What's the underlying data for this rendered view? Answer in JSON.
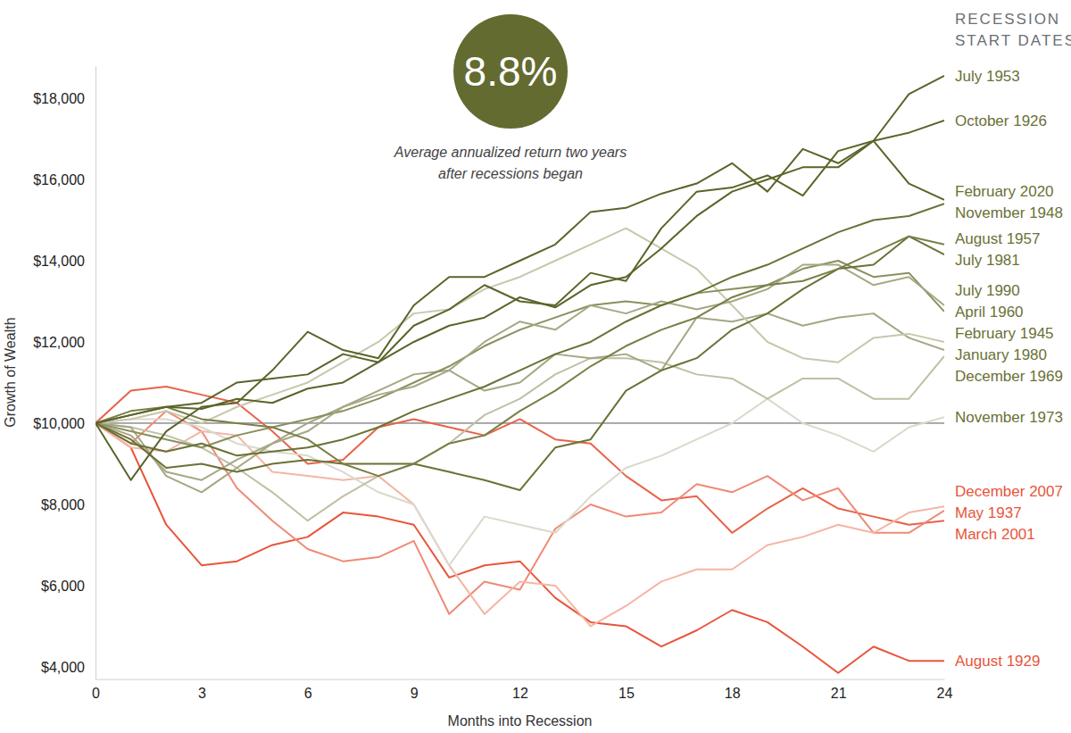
{
  "chart_data": {
    "type": "line",
    "headline": "8.8%",
    "caption": [
      "Average annualized return two years",
      "after recessions began"
    ],
    "legend_title": [
      "RECESSION",
      "START DATES"
    ],
    "x_label": "Months into Recession",
    "y_label": "Growth of Wealth",
    "x": [
      0,
      1,
      2,
      3,
      4,
      5,
      6,
      7,
      8,
      9,
      10,
      11,
      12,
      13,
      14,
      15,
      16,
      17,
      18,
      19,
      20,
      21,
      22,
      23,
      24
    ],
    "xlim": [
      0,
      24
    ],
    "xticks": [
      0,
      3,
      6,
      9,
      12,
      15,
      18,
      21,
      24
    ],
    "ylim": [
      3700,
      18800
    ],
    "yticks": [
      {
        "value": 4000,
        "label": "$4,000"
      },
      {
        "value": 6000,
        "label": "$6,000"
      },
      {
        "value": 8000,
        "label": "$8,000"
      },
      {
        "value": 10000,
        "label": "$10,000"
      },
      {
        "value": 12000,
        "label": "$12,000"
      },
      {
        "value": 14000,
        "label": "$14,000"
      },
      {
        "value": 16000,
        "label": "$16,000"
      },
      {
        "value": 18000,
        "label": "$18,000"
      }
    ],
    "baseline": 10000,
    "grid": false,
    "series": [
      {
        "name": "July 1953",
        "color": "#5b6429",
        "values": [
          10000,
          10200,
          10400,
          10350,
          10600,
          10500,
          10850,
          11000,
          11500,
          12000,
          12400,
          12600,
          13100,
          12850,
          13400,
          13600,
          14300,
          15100,
          15700,
          16000,
          16300,
          16300,
          16950,
          18100,
          18550
        ]
      },
      {
        "name": "October 1926",
        "color": "#5b6429",
        "values": [
          10000,
          10200,
          10400,
          10500,
          11000,
          11100,
          11200,
          11700,
          11500,
          12400,
          12800,
          13400,
          13000,
          12900,
          13700,
          13500,
          14800,
          15700,
          15800,
          16100,
          15600,
          16700,
          16950,
          17150,
          17450
        ]
      },
      {
        "name": "February 2020",
        "color": "#5b6429",
        "values": [
          10000,
          8600,
          9800,
          10400,
          10500,
          11300,
          12250,
          11800,
          11600,
          12900,
          13600,
          13600,
          14000,
          14400,
          15200,
          15300,
          15650,
          15900,
          16400,
          15700,
          16750,
          16400,
          16950,
          15900,
          15500
        ]
      },
      {
        "name": "November 1948",
        "color": "#6b7136",
        "values": [
          10000,
          9500,
          9300,
          9500,
          9200,
          9300,
          9400,
          9600,
          9900,
          10300,
          10600,
          10900,
          11300,
          11700,
          12000,
          12500,
          12900,
          13200,
          13600,
          13900,
          14300,
          14700,
          15000,
          15100,
          15400
        ]
      },
      {
        "name": "August 1957",
        "color": "#7a7f45",
        "values": [
          10000,
          10300,
          10400,
          10100,
          10000,
          9900,
          9600,
          9000,
          8700,
          9000,
          9500,
          9700,
          10300,
          10800,
          11400,
          11900,
          12300,
          12600,
          13100,
          13400,
          13500,
          13800,
          14200,
          14600,
          14400
        ]
      },
      {
        "name": "July 1981",
        "color": "#6b7136",
        "values": [
          10000,
          9600,
          8900,
          9000,
          8800,
          9000,
          9100,
          9000,
          9000,
          9000,
          8800,
          8600,
          8350,
          9400,
          9600,
          10800,
          11300,
          11600,
          12300,
          12700,
          13300,
          13800,
          13900,
          14600,
          14150
        ]
      },
      {
        "name": "July 1990",
        "color": "#a7a785",
        "values": [
          10000,
          9700,
          8800,
          8600,
          9100,
          9500,
          9800,
          10400,
          10700,
          10900,
          11300,
          12000,
          12500,
          12300,
          12900,
          12700,
          13000,
          12800,
          13000,
          13300,
          13900,
          13900,
          13400,
          13600,
          12900
        ]
      },
      {
        "name": "April 1960",
        "color": "#8b8f5e",
        "values": [
          10000,
          9800,
          9600,
          9400,
          9700,
          9900,
          10100,
          10300,
          10600,
          11000,
          11400,
          11900,
          12300,
          12600,
          12900,
          13000,
          12900,
          13200,
          13300,
          13400,
          13800,
          14000,
          13600,
          13700,
          12750
        ]
      },
      {
        "name": "February 1945",
        "color": "#c8c7ad",
        "values": [
          10000,
          10100,
          10300,
          10000,
          10400,
          10700,
          11000,
          11500,
          12000,
          12700,
          12800,
          13300,
          13600,
          14000,
          14400,
          14800,
          14300,
          13800,
          12900,
          12000,
          11600,
          11500,
          12100,
          12200,
          12000
        ]
      },
      {
        "name": "January 1980",
        "color": "#a5a683",
        "values": [
          10000,
          9900,
          8700,
          8300,
          8900,
          9500,
          10000,
          10400,
          10800,
          11200,
          11300,
          10800,
          11000,
          11700,
          11600,
          11700,
          11300,
          12600,
          12500,
          12700,
          12400,
          12600,
          12700,
          12100,
          11800
        ]
      },
      {
        "name": "December 1969",
        "color": "#c0bfa5",
        "values": [
          10000,
          9900,
          9700,
          9400,
          8900,
          8300,
          7600,
          8200,
          8700,
          9000,
          9500,
          10200,
          10600,
          11200,
          11600,
          11600,
          11500,
          11200,
          11100,
          10600,
          11100,
          11100,
          10600,
          10600,
          11650
        ]
      },
      {
        "name": "November 1973",
        "color": "#dad9cc",
        "values": [
          10000,
          10100,
          10100,
          9900,
          9500,
          9300,
          9200,
          8800,
          8300,
          8000,
          6500,
          7700,
          7500,
          7300,
          8200,
          8900,
          9200,
          9600,
          10000,
          10600,
          10000,
          9700,
          9300,
          9900,
          10150
        ]
      },
      {
        "name": "December 2007",
        "color": "#f5b5a5",
        "values": [
          10000,
          9400,
          9300,
          9800,
          9700,
          8800,
          8700,
          8600,
          8700,
          8000,
          6500,
          5300,
          6100,
          6000,
          5000,
          5500,
          6100,
          6400,
          6400,
          7000,
          7200,
          7500,
          7300,
          7800,
          7950
        ]
      },
      {
        "name": "May 1937",
        "color": "#ef8a76",
        "values": [
          10000,
          9500,
          10300,
          9800,
          8400,
          7600,
          6900,
          6600,
          6700,
          7100,
          5300,
          6100,
          5900,
          7400,
          8000,
          7700,
          7800,
          8500,
          8300,
          8700,
          8100,
          8400,
          7300,
          7300,
          7850
        ]
      },
      {
        "name": "March 2001",
        "color": "#e8634a",
        "values": [
          10000,
          10800,
          10900,
          10700,
          10500,
          9800,
          9000,
          9100,
          9900,
          10100,
          9900,
          9700,
          10100,
          9600,
          9500,
          8700,
          8100,
          8200,
          7300,
          7900,
          8400,
          7900,
          7700,
          7500,
          7600
        ]
      },
      {
        "name": "August 1929",
        "color": "#e8553a",
        "values": [
          10000,
          9400,
          7500,
          6500,
          6600,
          7000,
          7200,
          7800,
          7700,
          7500,
          6200,
          6500,
          6600,
          5700,
          5100,
          5000,
          4500,
          4900,
          5400,
          5100,
          4500,
          3850,
          4500,
          4150,
          4150
        ]
      }
    ]
  }
}
